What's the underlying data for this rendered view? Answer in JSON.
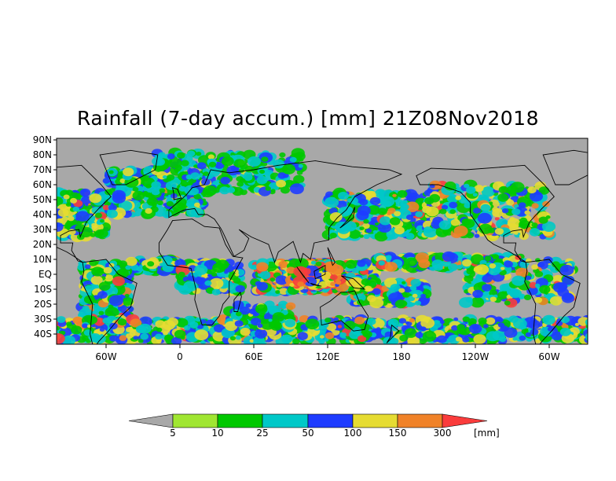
{
  "title": "Rainfall (7-day accum.) [mm] 21Z08Nov2018",
  "map": {
    "lat_labels": [
      "90N",
      "80N",
      "70N",
      "60N",
      "50N",
      "40N",
      "30N",
      "20N",
      "10N",
      "EQ",
      "10S",
      "20S",
      "30S",
      "40S"
    ],
    "lon_labels": [
      "60W",
      "0",
      "60E",
      "120E",
      "180",
      "120W",
      "60W"
    ],
    "no_rain_color": "#a8a8a8",
    "coastline_color": "#000000"
  },
  "colorbar": {
    "unit": "[mm]",
    "thresholds": [
      "5",
      "10",
      "25",
      "50",
      "100",
      "150",
      "300"
    ],
    "colors": [
      "#a8a8a8",
      "#a0e632",
      "#00c800",
      "#00c8c8",
      "#1e3cff",
      "#e6dc32",
      "#f08228",
      "#fa3c3c"
    ]
  }
}
